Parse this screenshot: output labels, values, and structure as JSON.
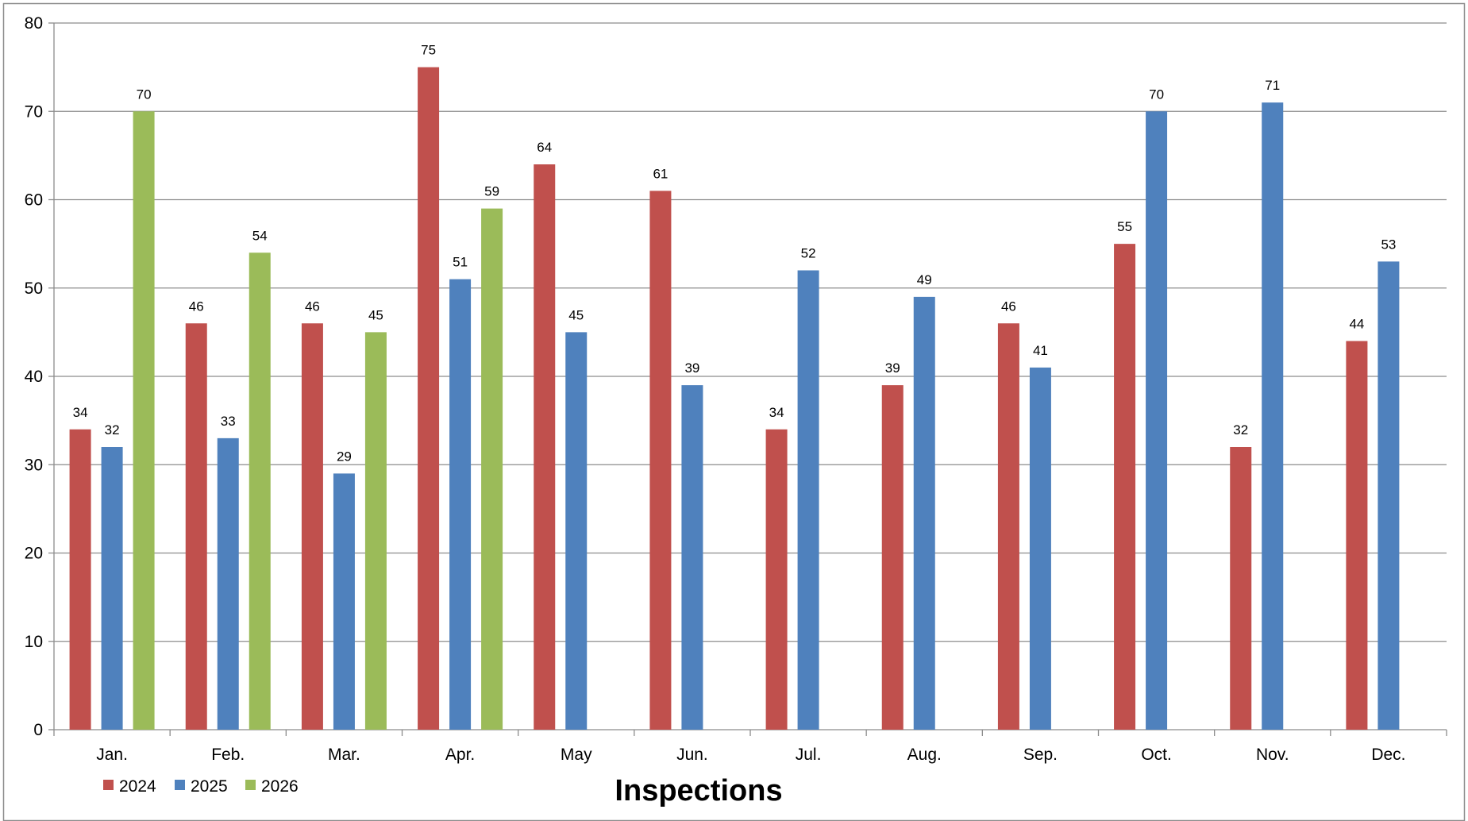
{
  "chart_data": {
    "type": "bar",
    "title": "Inspections",
    "xlabel": "",
    "ylabel": "",
    "ylim": [
      0,
      80
    ],
    "yticks": [
      0,
      10,
      20,
      30,
      40,
      50,
      60,
      70,
      80
    ],
    "grid": true,
    "legend_position": "bottom-left",
    "categories": [
      "Jan.",
      "Feb.",
      "Mar.",
      "Apr.",
      "May",
      "Jun.",
      "Jul.",
      "Aug.",
      "Sep.",
      "Oct.",
      "Nov.",
      "Dec."
    ],
    "series": [
      {
        "name": "2024",
        "color": "#C0504D",
        "values": [
          34,
          46,
          46,
          75,
          64,
          61,
          34,
          39,
          46,
          55,
          32,
          44
        ]
      },
      {
        "name": "2025",
        "color": "#4F81BD",
        "values": [
          32,
          33,
          29,
          51,
          45,
          39,
          52,
          49,
          41,
          70,
          71,
          53
        ]
      },
      {
        "name": "2026",
        "color": "#9BBB59",
        "values": [
          70,
          54,
          45,
          59,
          null,
          null,
          null,
          null,
          null,
          null,
          null,
          null
        ]
      }
    ]
  }
}
